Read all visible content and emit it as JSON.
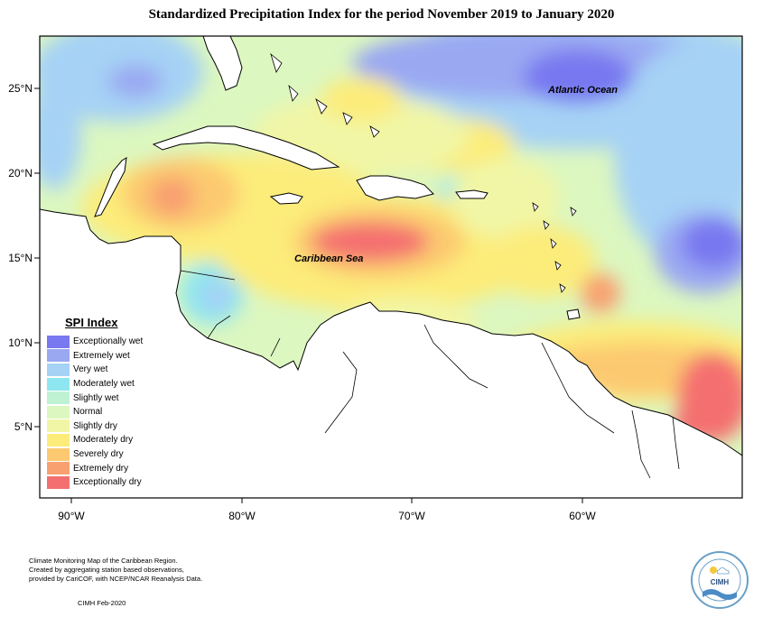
{
  "title": "Standardized Precipitation Index for the period November 2019 to January 2020",
  "axes": {
    "x_ticks": [
      "90°W",
      "80°W",
      "70°W",
      "60°W"
    ],
    "y_ticks": [
      "25°N",
      "20°N",
      "15°N",
      "10°N",
      "5°N"
    ]
  },
  "labels": {
    "atlantic": "Atlantic Ocean",
    "caribbean": "Caribbean Sea"
  },
  "legend": {
    "title": "SPI Index",
    "items": [
      {
        "label": "Exceptionally wet",
        "color": "#7878f0"
      },
      {
        "label": "Extremely wet",
        "color": "#9aa8f2"
      },
      {
        "label": "Very wet",
        "color": "#a6d2f5"
      },
      {
        "label": "Moderately wet",
        "color": "#8ee6f0"
      },
      {
        "label": "Slightly wet",
        "color": "#bff2d2"
      },
      {
        "label": "Normal",
        "color": "#dcf7c0"
      },
      {
        "label": "Slightly dry",
        "color": "#f1f6a6"
      },
      {
        "label": "Moderately dry",
        "color": "#fcec7a"
      },
      {
        "label": "Severely dry",
        "color": "#fcc970"
      },
      {
        "label": "Extremely dry",
        "color": "#f8a070"
      },
      {
        "label": "Exceptionally dry",
        "color": "#f47070"
      }
    ]
  },
  "footer": {
    "credit_lines": [
      "Climate Monitoring Map of the Caribbean Region.",
      "Created by aggregating station based observations,",
      "provided by CariCOF, with NCEP/NCAR Reanalysis Data."
    ],
    "date": "CIMH Feb-2020",
    "logo_text": "CIMH"
  }
}
